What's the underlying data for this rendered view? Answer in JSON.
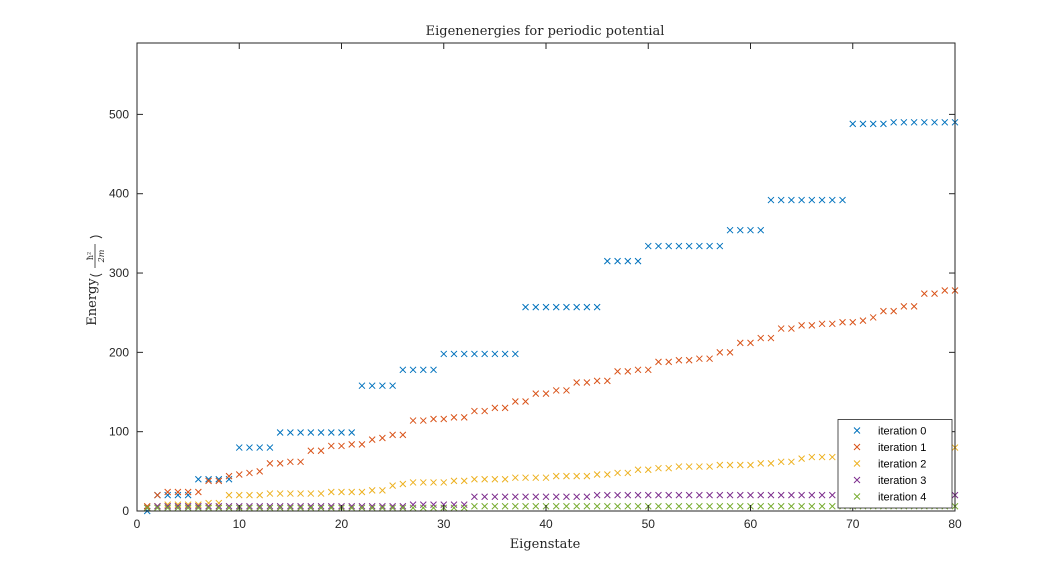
{
  "chart_data": {
    "type": "scatter",
    "title": "Eigenenergies for periodic potential",
    "xlabel": "Eigenstate",
    "ylabel": "Energy",
    "xlim": [
      0,
      80
    ],
    "ylim": [
      0,
      590
    ],
    "xticks": [
      0,
      10,
      20,
      30,
      40,
      50,
      60,
      70,
      80
    ],
    "yticks": [
      0,
      100,
      200,
      300,
      400,
      500
    ],
    "marker": "x",
    "grid": false,
    "legend_position": "bottom-right",
    "x": [
      1,
      2,
      3,
      4,
      5,
      6,
      7,
      8,
      9,
      10,
      11,
      12,
      13,
      14,
      15,
      16,
      17,
      18,
      19,
      20,
      21,
      22,
      23,
      24,
      25,
      26,
      27,
      28,
      29,
      30,
      31,
      32,
      33,
      34,
      35,
      36,
      37,
      38,
      39,
      40,
      41,
      42,
      43,
      44,
      45,
      46,
      47,
      48,
      49,
      50,
      51,
      52,
      53,
      54,
      55,
      56,
      57,
      58,
      59,
      60,
      61,
      62,
      63,
      64,
      65,
      66,
      67,
      68,
      69,
      70,
      71,
      72,
      73,
      74,
      75,
      76,
      77,
      78,
      79,
      80
    ],
    "series": [
      {
        "name": "iteration 0",
        "color": "#0072BD",
        "values": [
          0,
          20,
          20,
          20,
          20,
          40,
          40,
          40,
          40,
          80,
          80,
          80,
          80,
          99,
          99,
          99,
          99,
          99,
          99,
          99,
          99,
          158,
          158,
          158,
          158,
          178,
          178,
          178,
          178,
          198,
          198,
          198,
          198,
          198,
          198,
          198,
          198,
          257,
          257,
          257,
          257,
          257,
          257,
          257,
          257,
          315,
          315,
          315,
          315,
          334,
          334,
          334,
          334,
          334,
          334,
          334,
          334,
          354,
          354,
          354,
          354,
          392,
          392,
          392,
          392,
          392,
          392,
          392,
          392,
          488,
          488,
          488,
          488,
          490,
          490,
          490,
          490,
          490,
          490,
          490
        ]
      },
      {
        "name": "iteration 1",
        "color": "#D95319",
        "values": [
          6,
          20,
          24,
          24,
          24,
          24,
          38,
          38,
          44,
          46,
          48,
          50,
          60,
          60,
          62,
          62,
          76,
          76,
          82,
          82,
          84,
          84,
          90,
          92,
          96,
          96,
          114,
          114,
          116,
          116,
          118,
          118,
          126,
          126,
          130,
          130,
          138,
          138,
          148,
          148,
          152,
          152,
          162,
          162,
          164,
          164,
          176,
          176,
          178,
          178,
          188,
          188,
          190,
          190,
          192,
          192,
          200,
          200,
          212,
          212,
          218,
          218,
          230,
          230,
          234,
          234,
          236,
          236,
          238,
          238,
          240,
          244,
          252,
          252,
          258,
          258,
          274,
          274,
          278,
          278
        ]
      },
      {
        "name": "iteration 2",
        "color": "#EDB120",
        "values": [
          4,
          6,
          8,
          8,
          8,
          8,
          10,
          10,
          20,
          20,
          20,
          20,
          22,
          22,
          22,
          22,
          22,
          22,
          24,
          24,
          24,
          24,
          26,
          26,
          32,
          34,
          36,
          36,
          36,
          36,
          38,
          38,
          40,
          40,
          40,
          40,
          42,
          42,
          42,
          42,
          44,
          44,
          44,
          44,
          46,
          46,
          48,
          48,
          52,
          52,
          54,
          54,
          56,
          56,
          56,
          56,
          58,
          58,
          58,
          58,
          60,
          60,
          62,
          62,
          66,
          68,
          68,
          68,
          70,
          70,
          72,
          72,
          74,
          74,
          76,
          76,
          78,
          78,
          80,
          80
        ]
      },
      {
        "name": "iteration 3",
        "color": "#7E2F8E",
        "values": [
          4,
          6,
          6,
          6,
          6,
          6,
          6,
          6,
          6,
          6,
          6,
          6,
          6,
          6,
          6,
          6,
          6,
          6,
          6,
          6,
          6,
          6,
          6,
          6,
          6,
          6,
          8,
          8,
          8,
          8,
          8,
          8,
          18,
          18,
          18,
          18,
          18,
          18,
          18,
          18,
          18,
          18,
          18,
          18,
          20,
          20,
          20,
          20,
          20,
          20,
          20,
          20,
          20,
          20,
          20,
          20,
          20,
          20,
          20,
          20,
          20,
          20,
          20,
          20,
          20,
          20,
          20,
          20,
          20,
          20,
          20,
          20,
          20,
          20,
          20,
          20,
          20,
          20,
          20,
          20
        ]
      },
      {
        "name": "iteration 4",
        "color": "#77AC30",
        "values": [
          4,
          4,
          4,
          4,
          4,
          4,
          4,
          4,
          4,
          4,
          4,
          4,
          4,
          4,
          4,
          4,
          4,
          4,
          4,
          4,
          4,
          4,
          4,
          4,
          4,
          4,
          4,
          4,
          4,
          4,
          4,
          4,
          6,
          6,
          6,
          6,
          6,
          6,
          6,
          6,
          6,
          6,
          6,
          6,
          6,
          6,
          6,
          6,
          6,
          6,
          6,
          6,
          6,
          6,
          6,
          6,
          6,
          6,
          6,
          6,
          6,
          6,
          6,
          6,
          6,
          6,
          6,
          6,
          6,
          6,
          6,
          6,
          6,
          6,
          6,
          6,
          6,
          6,
          6,
          6
        ]
      }
    ]
  }
}
